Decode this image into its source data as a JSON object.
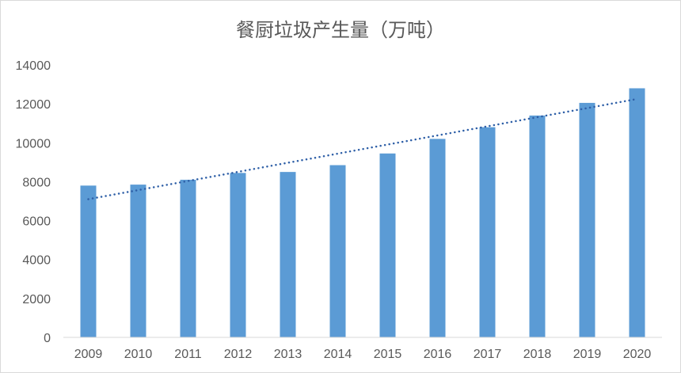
{
  "chart_data": {
    "type": "bar",
    "title": "餐厨垃圾产生量（万吨）",
    "xlabel": "",
    "ylabel": "",
    "categories": [
      "2009",
      "2010",
      "2011",
      "2012",
      "2013",
      "2014",
      "2015",
      "2016",
      "2017",
      "2018",
      "2019",
      "2020"
    ],
    "values": [
      7800,
      7850,
      8100,
      8450,
      8500,
      8850,
      9450,
      10200,
      10800,
      11400,
      12050,
      12800
    ],
    "ylim": [
      0,
      14000
    ],
    "yticks": [
      0,
      2000,
      4000,
      6000,
      8000,
      10000,
      12000,
      14000
    ],
    "grid": false,
    "legend": null,
    "trendline": {
      "type": "linear",
      "style": "dotted",
      "start": 7100,
      "end": 12250
    },
    "colors": {
      "bar": "#5b9bd5",
      "trendline": "#2e5fa7"
    }
  }
}
